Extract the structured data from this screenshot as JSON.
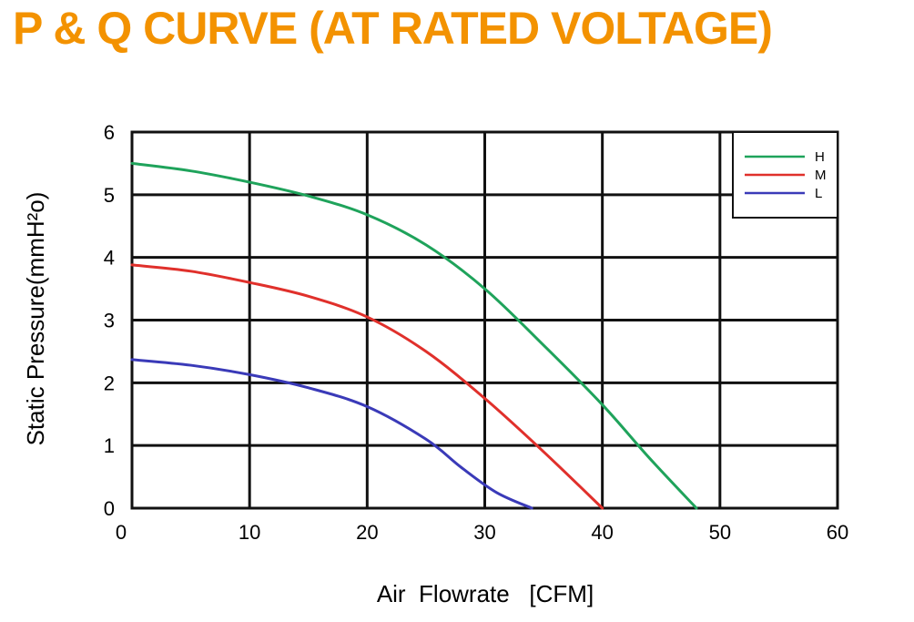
{
  "title": "P & Q CURVE (AT RATED VOLTAGE)",
  "colors": {
    "title": "#f39200",
    "H": "#1fa35b",
    "M": "#e0302b",
    "L": "#3a3ab8"
  },
  "chart_data": {
    "type": "line",
    "xlabel": "Air  Flowrate   [CFM]",
    "ylabel": "Static Pressure(mmH²o)",
    "xlim": [
      0,
      60
    ],
    "ylim": [
      0,
      6
    ],
    "xticks": [
      0,
      10,
      20,
      30,
      40,
      50,
      60
    ],
    "yticks": [
      0,
      1,
      2,
      3,
      4,
      5,
      6
    ],
    "grid": true,
    "legend_position": "top-right",
    "series": [
      {
        "name": "H",
        "color": "#1fa35b",
        "points": [
          [
            0,
            5.5
          ],
          [
            5,
            5.38
          ],
          [
            10,
            5.2
          ],
          [
            15,
            4.98
          ],
          [
            20,
            4.68
          ],
          [
            25,
            4.2
          ],
          [
            30,
            3.5
          ],
          [
            35,
            2.6
          ],
          [
            40,
            1.65
          ],
          [
            44,
            0.8
          ],
          [
            48,
            0
          ]
        ]
      },
      {
        "name": "M",
        "color": "#e0302b",
        "points": [
          [
            0,
            3.88
          ],
          [
            5,
            3.78
          ],
          [
            10,
            3.6
          ],
          [
            15,
            3.38
          ],
          [
            20,
            3.05
          ],
          [
            25,
            2.5
          ],
          [
            30,
            1.75
          ],
          [
            35,
            0.9
          ],
          [
            40,
            0
          ]
        ]
      },
      {
        "name": "L",
        "color": "#3a3ab8",
        "points": [
          [
            0,
            2.37
          ],
          [
            5,
            2.28
          ],
          [
            10,
            2.13
          ],
          [
            15,
            1.92
          ],
          [
            20,
            1.62
          ],
          [
            25,
            1.1
          ],
          [
            28,
            0.65
          ],
          [
            31,
            0.25
          ],
          [
            34,
            0
          ]
        ]
      }
    ]
  }
}
